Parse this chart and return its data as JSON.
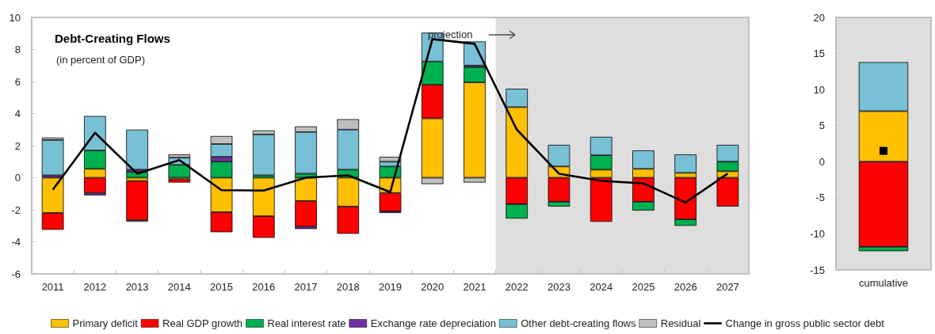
{
  "chart_data": [
    {
      "type": "bar",
      "title": "Debt-Creating Flows",
      "subtitle": "(in percent of GDP)",
      "stacked": true,
      "legend": "bottom",
      "grid": false,
      "categories": [
        "2011",
        "2012",
        "2013",
        "2014",
        "2015",
        "2016",
        "2017",
        "2018",
        "2019",
        "2020",
        "2021",
        "2022",
        "2023",
        "2024",
        "2025",
        "2026",
        "2027"
      ],
      "ylim": [
        -6,
        10
      ],
      "yticks": [
        -6,
        -4,
        -2,
        0,
        2,
        4,
        6,
        8,
        10
      ],
      "series": [
        {
          "name": "Primary deficit",
          "color": "#ffc000",
          "values": [
            -2.2,
            0.55,
            -0.2,
            -0.1,
            -2.15,
            -2.4,
            -1.45,
            -1.8,
            -0.95,
            3.7,
            5.95,
            4.4,
            0.7,
            0.5,
            0.55,
            0.3,
            0.4
          ]
        },
        {
          "name": "Real GDP growth",
          "color": "#ff0000",
          "values": [
            -1.05,
            -0.95,
            -2.45,
            -0.2,
            -1.25,
            -1.35,
            -1.6,
            -1.7,
            -1.15,
            2.1,
            null,
            -1.65,
            -1.5,
            -2.75,
            -1.5,
            -2.6,
            -1.8
          ]
        },
        {
          "name": "Real interest rate",
          "color": "#00b050",
          "values": [
            null,
            1.15,
            0.35,
            0.8,
            1.0,
            0.15,
            0.25,
            0.5,
            0.7,
            1.45,
            0.95,
            -0.9,
            -0.3,
            0.9,
            -0.55,
            -0.4,
            0.6
          ]
        },
        {
          "name": "Exchange rate depreciation",
          "color": "#7030a0",
          "values": [
            0.15,
            -0.15,
            0.15,
            null,
            0.3,
            null,
            -0.15,
            null,
            -0.1,
            null,
            0.1,
            null,
            null,
            null,
            null,
            null,
            null
          ]
        },
        {
          "name": "Other debt-creating flows",
          "color": "#78c0d6",
          "values": [
            2.2,
            2.15,
            2.5,
            0.45,
            0.8,
            2.55,
            2.6,
            2.5,
            0.3,
            1.8,
            1.5,
            1.15,
            1.35,
            1.15,
            1.15,
            1.15,
            1.05
          ]
        },
        {
          "name": "Residual",
          "color": "#bfbfbf",
          "values": [
            0.15,
            null,
            -0.1,
            0.2,
            0.5,
            0.25,
            0.35,
            0.65,
            0.3,
            -0.4,
            -0.3,
            null,
            null,
            null,
            null,
            null,
            null
          ]
        },
        {
          "name": "Change in gross public sector debt",
          "type": "line",
          "color": "#000000",
          "marker": "none",
          "values": [
            -0.75,
            2.8,
            0.25,
            1.1,
            -0.78,
            -0.8,
            0.0,
            0.15,
            -0.9,
            8.65,
            8.35,
            3.0,
            0.25,
            -0.2,
            -0.35,
            -1.55,
            0.25
          ]
        }
      ],
      "bands": [
        {
          "axis": "x",
          "from": "2022",
          "to": "2027",
          "color": "#dedede"
        }
      ],
      "annotations": [
        "projection"
      ]
    },
    {
      "type": "bar",
      "stacked": true,
      "grid": false,
      "categories": [
        "cumulative"
      ],
      "ylim": [
        -15,
        20
      ],
      "yticks": [
        -15,
        -10,
        -5,
        0,
        5,
        10,
        15,
        20
      ],
      "series": [
        {
          "color": "#ffc000",
          "values": [
            7.0
          ]
        },
        {
          "color": "#ff0000",
          "values": [
            -11.8
          ]
        },
        {
          "color": "#00b050",
          "values": [
            -0.6
          ]
        },
        {
          "color": "#78c0d6",
          "values": [
            6.8
          ]
        },
        {
          "type": "line",
          "color": "#000000",
          "marker": "square",
          "values": [
            1.5
          ]
        }
      ],
      "bands": [
        {
          "axis": "x",
          "from": "cumulative",
          "to": "cumulative",
          "color": "#dedede"
        }
      ]
    }
  ]
}
